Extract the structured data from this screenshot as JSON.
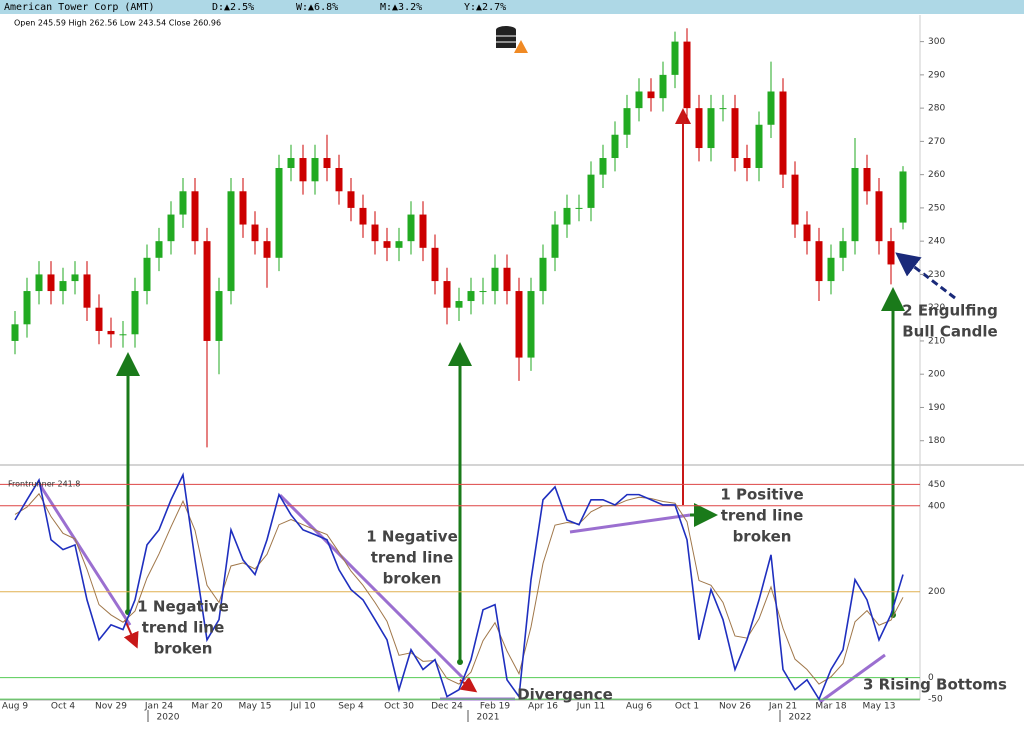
{
  "header": {
    "title": "American Tower Corp (AMT)",
    "stats": [
      "D:▲2.5%",
      "W:▲6.8%",
      "M:▲3.2%",
      "Y:▲2.7%"
    ],
    "ohlc": "Open 245.59  High 262.56  Low 243.54  Close 260.96"
  },
  "chart_data": [
    {
      "type": "candlestick",
      "categories": [
        "Aug 9",
        null,
        null,
        null,
        "Oct 4",
        null,
        null,
        null,
        "Nov 29",
        null,
        null,
        null,
        "Jan 24",
        null,
        null,
        null,
        "Mar 20",
        null,
        null,
        null,
        "May 15",
        null,
        null,
        null,
        "Jul 10",
        null,
        null,
        null,
        "Sep 4",
        null,
        null,
        null,
        "Oct 30",
        null,
        null,
        null,
        "Dec 24",
        null,
        null,
        null,
        "Feb 19",
        null,
        null,
        null,
        "Apr 16",
        null,
        null,
        null,
        "Jun 11",
        null,
        null,
        null,
        "Aug 6",
        null,
        null,
        null,
        "Oct 1",
        null,
        null,
        null,
        "Nov 26",
        null,
        null,
        null,
        "Jan 21",
        null,
        null,
        null,
        "Mar 18",
        null,
        null,
        null,
        "May 13",
        null,
        null
      ],
      "open": [
        210,
        215,
        225,
        230,
        225,
        228,
        230,
        220,
        213,
        212,
        212,
        225,
        235,
        240,
        248,
        255,
        240,
        210,
        225,
        255,
        245,
        240,
        235,
        262,
        265,
        258,
        265,
        262,
        255,
        250,
        245,
        240,
        238,
        240,
        248,
        238,
        228,
        220,
        222,
        225,
        225,
        232,
        225,
        205,
        225,
        235,
        245,
        250,
        250,
        260,
        265,
        272,
        280,
        285,
        283,
        290,
        300,
        280,
        268,
        280,
        280,
        265,
        262,
        275,
        285,
        260,
        245,
        240,
        228,
        235,
        240,
        262,
        255,
        240,
        245.59
      ],
      "high": [
        219,
        229,
        234,
        234,
        232,
        234,
        234,
        224,
        217,
        216,
        229,
        239,
        244,
        252,
        259,
        259,
        244,
        229,
        259,
        259,
        249,
        244,
        266,
        269,
        269,
        269,
        272,
        266,
        259,
        254,
        249,
        244,
        244,
        252,
        252,
        242,
        232,
        226,
        229,
        229,
        236,
        236,
        229,
        229,
        239,
        249,
        254,
        254,
        264,
        269,
        276,
        284,
        289,
        289,
        294,
        303,
        304,
        284,
        284,
        284,
        284,
        269,
        279,
        294,
        289,
        264,
        249,
        244,
        239,
        244,
        271,
        266,
        259,
        244,
        262.56
      ],
      "low": [
        206,
        211,
        221,
        221,
        221,
        224,
        216,
        209,
        208,
        208,
        208,
        221,
        231,
        236,
        244,
        236,
        178,
        200,
        221,
        241,
        236,
        226,
        231,
        258,
        254,
        254,
        258,
        251,
        246,
        241,
        236,
        234,
        234,
        236,
        234,
        224,
        215,
        216,
        218,
        221,
        221,
        221,
        198,
        201,
        221,
        231,
        241,
        246,
        246,
        256,
        261,
        268,
        276,
        279,
        279,
        286,
        276,
        264,
        264,
        276,
        261,
        258,
        258,
        271,
        256,
        241,
        236,
        222,
        224,
        231,
        236,
        251,
        236,
        227,
        243.54
      ],
      "close": [
        215,
        225,
        230,
        225,
        228,
        230,
        220,
        213,
        212,
        212,
        225,
        235,
        240,
        248,
        255,
        240,
        210,
        225,
        255,
        245,
        240,
        235,
        262,
        265,
        258,
        265,
        262,
        255,
        250,
        245,
        240,
        238,
        240,
        248,
        238,
        228,
        220,
        222,
        225,
        225,
        232,
        225,
        205,
        225,
        235,
        245,
        250,
        250,
        260,
        265,
        272,
        280,
        285,
        283,
        290,
        300,
        280,
        268,
        280,
        280,
        265,
        262,
        275,
        285,
        260,
        245,
        240,
        228,
        235,
        240,
        262,
        255,
        240,
        233,
        260.96
      ],
      "colors": {
        "up": "#22aa22",
        "down": "#cc0000"
      },
      "ylim": [
        172.7,
        308
      ],
      "yticks": [
        180,
        190,
        200,
        210,
        220,
        230,
        240,
        250,
        260,
        270,
        280,
        290,
        300
      ]
    },
    {
      "type": "line",
      "legend": "Frontrunner 241.8",
      "series": [
        {
          "color": "#1f2fbf",
          "values": [
            367,
            414,
            460,
            321,
            298,
            309,
            181,
            88,
            123,
            112,
            181,
            309,
            344,
            414,
            472,
            274,
            88,
            135,
            344,
            274,
            240,
            321,
            426,
            379,
            344,
            333,
            321,
            251,
            205,
            181,
            135,
            88,
            -28,
            65,
            19,
            42,
            -44,
            -28,
            42,
            158,
            170,
            -5,
            -44,
            228,
            414,
            444,
            367,
            356,
            414,
            414,
            402,
            426,
            426,
            414,
            402,
            402,
            321,
            88,
            205,
            135,
            19,
            88,
            181,
            286,
            19,
            -28,
            -5,
            -50,
            19,
            65,
            228,
            181,
            88,
            147,
            240
          ]
        },
        {
          "color": "#a0774a",
          "values": [
            380,
            397,
            428,
            375,
            336,
            323,
            252,
            170,
            146,
            129,
            155,
            232,
            288,
            351,
            411,
            343,
            215,
            175,
            260,
            267,
            253,
            287,
            356,
            368,
            356,
            344,
            333,
            292,
            248,
            215,
            175,
            131,
            52,
            58,
            38,
            40,
            -2,
            -15,
            13,
            86,
            128,
            62,
            9,
            118,
            266,
            355,
            361,
            358,
            386,
            400,
            401,
            413,
            420,
            417,
            410,
            406,
            363,
            226,
            215,
            175,
            97,
            92,
            137,
            211,
            115,
            43,
            19,
            -15,
            2,
            33,
            130,
            156,
            122,
            134,
            187
          ]
        }
      ],
      "ylim": [
        -52,
        488
      ],
      "yticks": [
        450,
        400,
        200,
        0,
        -50
      ],
      "tick_line_colors": [
        "#dd4444",
        "#dd4444",
        "#e0b050",
        "#55cc55",
        "#55cc55"
      ],
      "year_labels": [
        "2020",
        "2021",
        "2022"
      ]
    }
  ],
  "annotations": [
    {
      "lines": [
        "1 Negative",
        "trend line",
        "broken"
      ]
    },
    {
      "lines": [
        "1 Negative",
        "trend line",
        "broken"
      ]
    },
    {
      "lines": [
        "1 Positive",
        "trend line",
        "broken"
      ]
    },
    {
      "lines": [
        "2 Engulfing",
        "Bull Candle"
      ]
    },
    {
      "lines": [
        "3 Rising Bottoms"
      ]
    },
    {
      "lines": [
        "Divergence"
      ]
    }
  ]
}
